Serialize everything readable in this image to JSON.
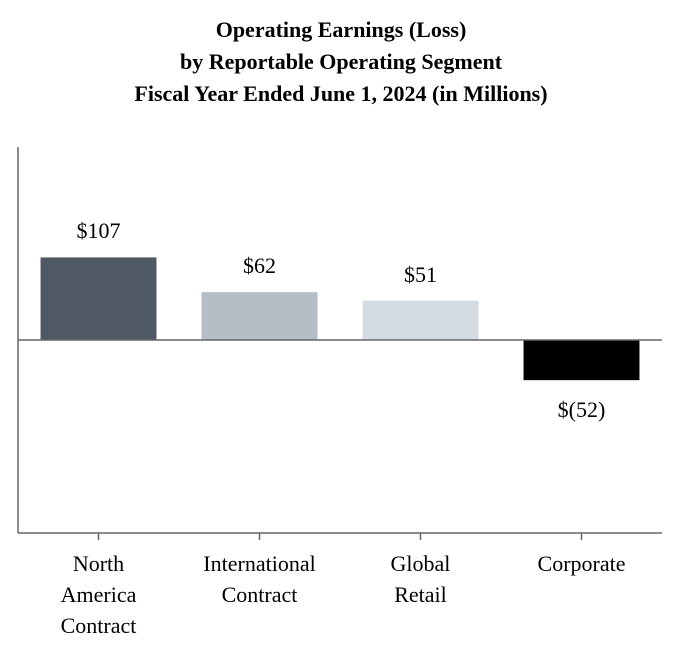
{
  "chart_data": {
    "type": "bar",
    "title": "Operating Earnings (Loss)\nby Reportable Operating Segment\nFiscal Year Ended June 1, 2024 (in Millions)",
    "categories": [
      "North\nAmerica\nContract",
      "International\nContract",
      "Global\nRetail",
      "Corporate"
    ],
    "values": [
      107,
      62,
      51,
      -52
    ],
    "value_labels": [
      "$107",
      "$62",
      "$51",
      "$(52)"
    ],
    "colors": [
      "#4f5963",
      "#b5bec6",
      "#d3dbe0",
      "#000000"
    ],
    "ylim": [
      -250,
      250
    ]
  }
}
